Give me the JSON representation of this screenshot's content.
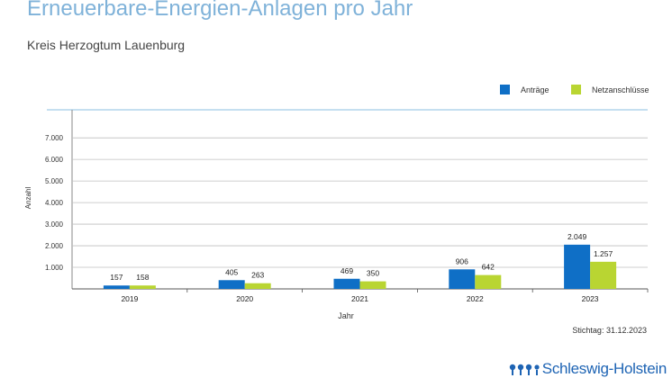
{
  "title": "Erneuerbare-Energien-Anlagen pro Jahr",
  "subtitle": "Kreis Herzogtum Lauenburg",
  "stichtag": "Stichtag: 31.12.2023",
  "brand": "Schleswig-Holstein",
  "colors": {
    "antraege": "#0f6fc6",
    "netzanschluesse": "#b9d532",
    "grid": "#bfbfbf",
    "title": "#7fb2d9",
    "brand": "#1e64b4"
  },
  "chart_data": {
    "type": "bar",
    "title": "Erneuerbare-Energien-Anlagen pro Jahr",
    "xlabel": "Jahr",
    "ylabel": "Anzahl",
    "categories": [
      "2019",
      "2020",
      "2021",
      "2022",
      "2023"
    ],
    "series": [
      {
        "name": "Anträge",
        "values": [
          157,
          405,
          469,
          906,
          2049
        ],
        "labels": [
          "157",
          "405",
          "469",
          "906",
          "2.049"
        ]
      },
      {
        "name": "Netzanschlüsse",
        "values": [
          158,
          263,
          350,
          642,
          1257
        ],
        "labels": [
          "158",
          "263",
          "350",
          "642",
          "1.257"
        ]
      }
    ],
    "yticks": [
      1000,
      2000,
      3000,
      4000,
      5000,
      6000,
      7000
    ],
    "ytick_labels": [
      "1.000",
      "2.000",
      "3.000",
      "4.000",
      "5.000",
      "6.000",
      "7.000"
    ],
    "ylim": [
      0,
      8300
    ],
    "grid": true,
    "legend_position": "top-right"
  }
}
